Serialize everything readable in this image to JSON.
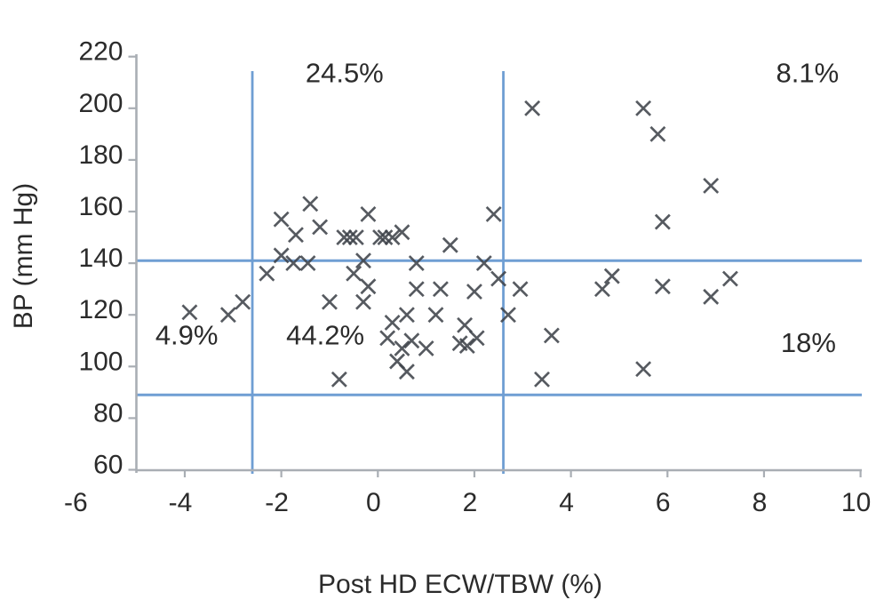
{
  "chart_data": {
    "type": "scatter",
    "title": "",
    "xlabel": "Post HD ECW/TBW (%)",
    "ylabel": "BP (mm Hg)",
    "xlim": [
      -6,
      10
    ],
    "ylim": [
      60,
      220
    ],
    "x_ticks": [
      -6,
      -4,
      -2,
      0,
      2,
      4,
      6,
      8,
      10
    ],
    "y_ticks": [
      60,
      80,
      100,
      120,
      140,
      160,
      180,
      200,
      220
    ],
    "grid": false,
    "legend": "none",
    "marker": "x",
    "reference_lines": {
      "vertical_x": [
        -2.6,
        2.6
      ],
      "horizontal_y": [
        141,
        89
      ]
    },
    "quadrant_labels": [
      {
        "text": "24.5%",
        "x": -0.69,
        "y": 213.5
      },
      {
        "text": "8.1%",
        "x": 8.9,
        "y": 213.5
      },
      {
        "text": "4.9%",
        "x": -3.96,
        "y": 112
      },
      {
        "text": "44.2%",
        "x": -1.09,
        "y": 112
      },
      {
        "text": "18%",
        "x": 8.92,
        "y": 109
      }
    ],
    "points": [
      [
        -3.9,
        121
      ],
      [
        -3.1,
        120
      ],
      [
        -2.8,
        125
      ],
      [
        -2.0,
        157
      ],
      [
        -2.0,
        143
      ],
      [
        -1.7,
        151
      ],
      [
        -1.4,
        163
      ],
      [
        -1.2,
        154
      ],
      [
        -0.7,
        150
      ],
      [
        -0.58,
        150
      ],
      [
        -0.45,
        150
      ],
      [
        0.05,
        150
      ],
      [
        0.15,
        150
      ],
      [
        0.3,
        150
      ],
      [
        0.5,
        152
      ],
      [
        -0.2,
        159
      ],
      [
        1.5,
        147
      ],
      [
        2.4,
        159
      ],
      [
        -1.75,
        140
      ],
      [
        -1.45,
        140
      ],
      [
        -0.3,
        141
      ],
      [
        0.8,
        140
      ],
      [
        2.2,
        140
      ],
      [
        3.2,
        200
      ],
      [
        5.5,
        200
      ],
      [
        5.8,
        190
      ],
      [
        6.9,
        170
      ],
      [
        5.9,
        156
      ],
      [
        -2.3,
        136
      ],
      [
        -0.5,
        136
      ],
      [
        -0.2,
        131
      ],
      [
        2.5,
        134
      ],
      [
        0.8,
        130
      ],
      [
        1.3,
        130
      ],
      [
        2.0,
        129
      ],
      [
        -0.3,
        125
      ],
      [
        -1.0,
        125
      ],
      [
        0.6,
        120
      ],
      [
        1.2,
        120
      ],
      [
        0.3,
        117
      ],
      [
        1.8,
        116
      ],
      [
        0.2,
        111
      ],
      [
        0.7,
        110
      ],
      [
        0.5,
        107
      ],
      [
        1.0,
        107
      ],
      [
        0.4,
        102
      ],
      [
        0.6,
        98
      ],
      [
        1.7,
        109
      ],
      [
        1.85,
        108
      ],
      [
        2.05,
        111
      ],
      [
        -0.8,
        95
      ],
      [
        2.95,
        130
      ],
      [
        2.7,
        120
      ],
      [
        3.6,
        112
      ],
      [
        3.4,
        95
      ],
      [
        5.5,
        99
      ],
      [
        4.85,
        135
      ],
      [
        4.65,
        130
      ],
      [
        5.9,
        131
      ],
      [
        6.9,
        127
      ],
      [
        7.3,
        134
      ]
    ]
  },
  "colors": {
    "reference_line": "#6f9ed3",
    "marker": "#3f444b",
    "axis": "#a9aeb4",
    "text": "#2b2b2b"
  }
}
